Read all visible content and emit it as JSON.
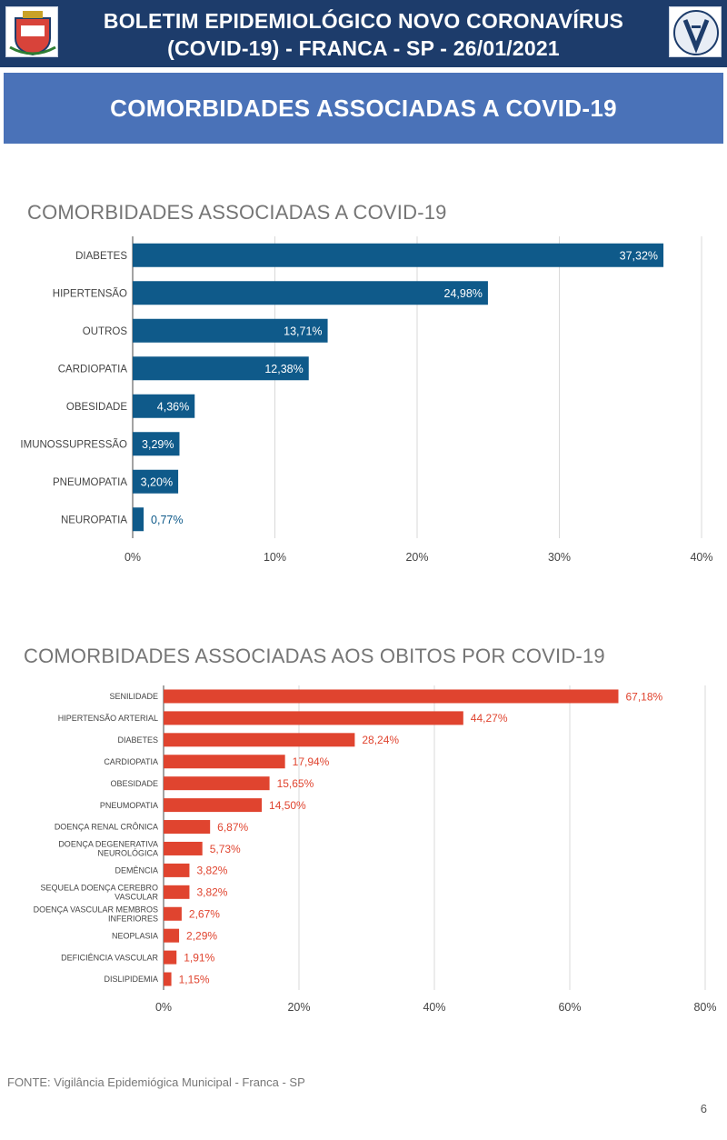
{
  "header": {
    "title_line1": "BOLETIM EPIDEMIOLÓGICO NOVO CORONAVÍRUS",
    "title_line2": "(COVID-19) - FRANCA - SP - 26/01/2021",
    "left_logo": "city-coat-of-arms-icon",
    "right_logo": "vigilancia-epidemiologica-logo-icon"
  },
  "banner": {
    "text": "COMORBIDADES ASSOCIADAS A COVID-19"
  },
  "colors": {
    "header_bg": "#1d3c6b",
    "banner_bg": "#4a72b8",
    "chart1_bar": "#0f5a8a",
    "chart2_bar": "#e0442f",
    "gridline": "#d9d9d9",
    "axis_text": "#444444",
    "title_text": "#757575"
  },
  "chart_data": [
    {
      "type": "bar",
      "orientation": "horizontal",
      "title": "COMORBIDADES ASSOCIADAS A COVID-19",
      "categories": [
        "DIABETES",
        "HIPERTENSÃO",
        "OUTROS",
        "CARDIOPATIA",
        "OBESIDADE",
        "IMUNOSSUPRESSÃO",
        "PNEUMOPATIA",
        "NEUROPATIA"
      ],
      "values": [
        37.32,
        24.98,
        13.71,
        12.38,
        4.36,
        3.29,
        3.2,
        0.77
      ],
      "value_labels": [
        "37,32%",
        "24,98%",
        "13,71%",
        "12,38%",
        "4,36%",
        "3,29%",
        "3,20%",
        "0,77%"
      ],
      "xlim": [
        0,
        40
      ],
      "xticks": [
        "0%",
        "10%",
        "20%",
        "30%",
        "40%"
      ],
      "grid": true,
      "label_position": "inside-end"
    },
    {
      "type": "bar",
      "orientation": "horizontal",
      "title": "COMORBIDADES ASSOCIADAS AOS OBITOS POR COVID-19",
      "categories": [
        "SENILIDADE",
        "HIPERTENSÃO ARTERIAL",
        "DIABETES",
        "CARDIOPATIA",
        "OBESIDADE",
        "PNEUMOPATIA",
        "DOENÇA RENAL CRÔNICA",
        "DOENÇA DEGENERATIVA NEUROLÓGICA",
        "DEMÊNCIA",
        "SEQUELA DOENÇA CEREBRO VASCULAR",
        "DOENÇA VASCULAR MEMBROS INFERIORES",
        "NEOPLASIA",
        "DEFICIÊNCIA VASCULAR",
        "DISLIPIDEMIA"
      ],
      "category_lines": [
        [
          "SENILIDADE"
        ],
        [
          "HIPERTENSÃO ARTERIAL"
        ],
        [
          "DIABETES"
        ],
        [
          "CARDIOPATIA"
        ],
        [
          "OBESIDADE"
        ],
        [
          "PNEUMOPATIA"
        ],
        [
          "DOENÇA RENAL CRÔNICA"
        ],
        [
          "DOENÇA DEGENERATIVA",
          "NEUROLÓGICA"
        ],
        [
          "DEMÊNCIA"
        ],
        [
          "SEQUELA DOENÇA CEREBRO",
          "VASCULAR"
        ],
        [
          "DOENÇA VASCULAR MEMBROS",
          "INFERIORES"
        ],
        [
          "NEOPLASIA"
        ],
        [
          "DEFICIÊNCIA VASCULAR"
        ],
        [
          "DISLIPIDEMIA"
        ]
      ],
      "values": [
        67.18,
        44.27,
        28.24,
        17.94,
        15.65,
        14.5,
        6.87,
        5.73,
        3.82,
        3.82,
        2.67,
        2.29,
        1.91,
        1.15
      ],
      "value_labels": [
        "67,18%",
        "44,27%",
        "28,24%",
        "17,94%",
        "15,65%",
        "14,50%",
        "6,87%",
        "5,73%",
        "3,82%",
        "3,82%",
        "2,67%",
        "2,29%",
        "1,91%",
        "1,15%"
      ],
      "xlim": [
        0,
        80
      ],
      "xticks": [
        "0%",
        "20%",
        "40%",
        "60%",
        "80%"
      ],
      "grid": true,
      "label_position": "outside-end"
    }
  ],
  "footer": {
    "source": "FONTE: Vigilância Epidemiógica Municipal - Franca - SP",
    "page_number": "6"
  }
}
